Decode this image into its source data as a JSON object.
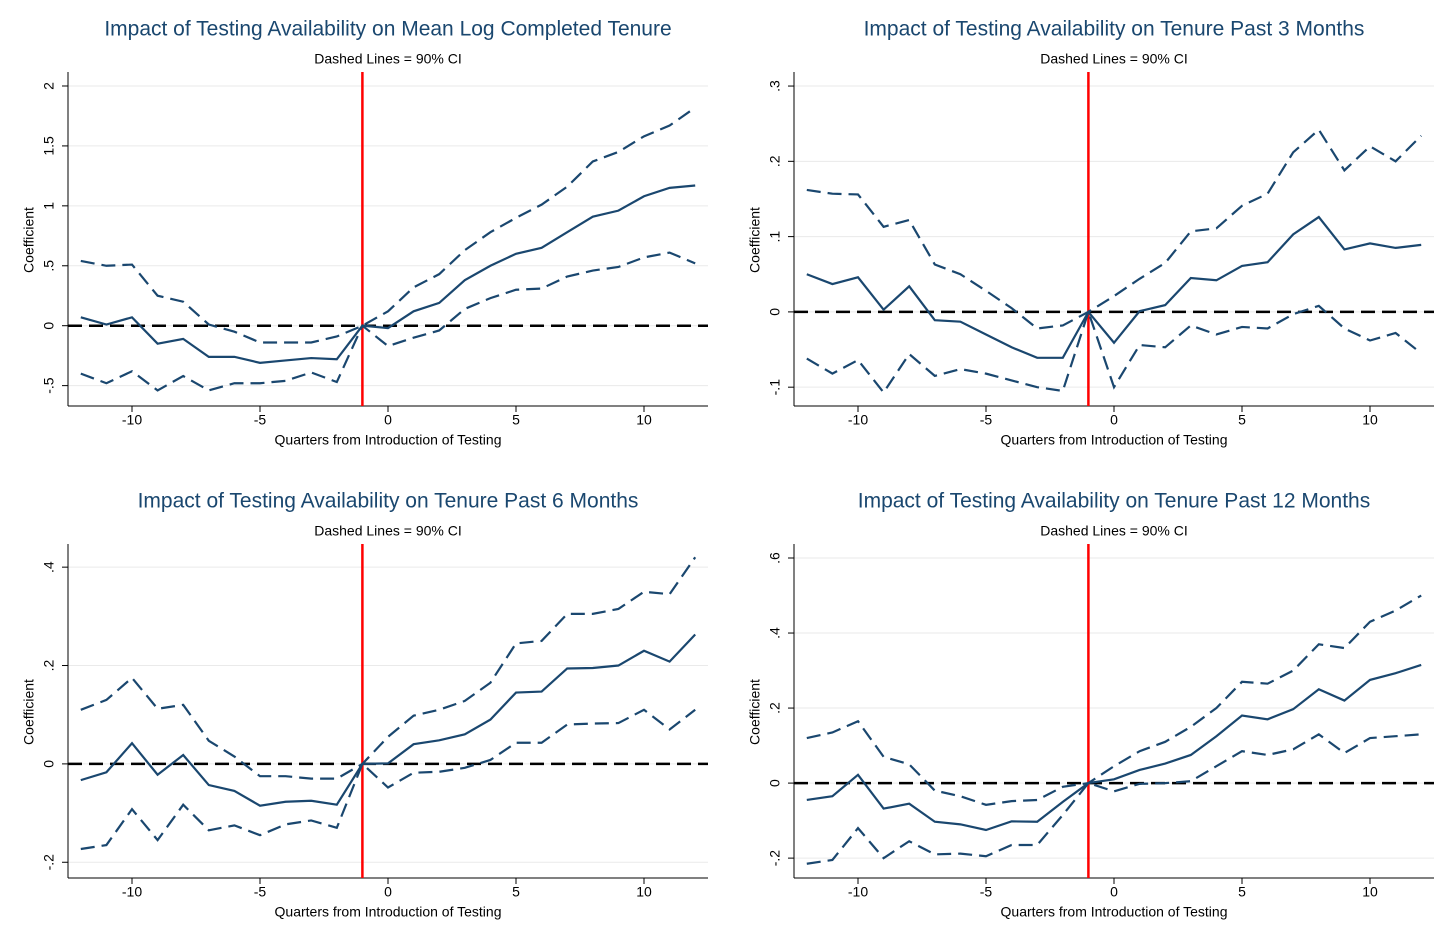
{
  "chart_data": [
    {
      "type": "line",
      "title": "Impact of Testing Availability on Mean Log Completed Tenure",
      "subtitle": "Dashed Lines = 90% CI",
      "xlabel": "Quarters from Introduction of Testing",
      "ylabel": "Coefficient",
      "x": [
        -12,
        -11,
        -10,
        -9,
        -8,
        -7,
        -6,
        -5,
        -4,
        -3,
        -2,
        -1,
        0,
        1,
        2,
        3,
        4,
        5,
        6,
        7,
        8,
        9,
        10,
        11,
        12
      ],
      "series": [
        {
          "color": "#1a476f",
          "line_style": "solid",
          "values": [
            0.07,
            0.01,
            0.07,
            -0.15,
            -0.11,
            -0.26,
            -0.26,
            -0.31,
            -0.29,
            -0.27,
            -0.28,
            0,
            -0.02,
            0.12,
            0.19,
            0.38,
            0.5,
            0.6,
            0.65,
            0.78,
            0.91,
            0.96,
            1.08,
            1.15,
            1.17
          ]
        },
        {
          "color": "#1a476f",
          "line_style": "dashed",
          "values": [
            0.54,
            0.5,
            0.51,
            0.25,
            0.2,
            0.01,
            -0.05,
            -0.14,
            -0.14,
            -0.14,
            -0.09,
            0,
            0.12,
            0.32,
            0.43,
            0.63,
            0.78,
            0.9,
            1.01,
            1.16,
            1.37,
            1.45,
            1.58,
            1.67,
            1.82
          ]
        },
        {
          "color": "#1a476f",
          "line_style": "dashed",
          "values": [
            -0.4,
            -0.48,
            -0.38,
            -0.54,
            -0.42,
            -0.54,
            -0.48,
            -0.48,
            -0.46,
            -0.39,
            -0.47,
            0,
            -0.17,
            -0.1,
            -0.04,
            0.14,
            0.23,
            0.3,
            0.31,
            0.41,
            0.46,
            0.49,
            0.57,
            0.61,
            0.52
          ]
        }
      ],
      "xlim": [
        -12.5,
        12.5
      ],
      "xticks": [
        -10,
        -5,
        0,
        5,
        10
      ],
      "ylim": [
        -0.67,
        2.1
      ],
      "yticks": [
        {
          "value": -0.5,
          "label": "-.5"
        },
        0,
        {
          "value": 0.5,
          "label": ".5"
        },
        1,
        {
          "value": 1.5,
          "label": "1.5"
        },
        2
      ],
      "grid": true,
      "vline": -1,
      "vline_color": "#ff0000",
      "hline": 0,
      "hline_color": "#000000"
    },
    {
      "type": "line",
      "title": "Impact of Testing Availability on Tenure Past 3 Months",
      "subtitle": "Dashed Lines = 90% CI",
      "xlabel": "Quarters from Introduction of Testing",
      "ylabel": "Coefficient",
      "x": [
        -12,
        -11,
        -10,
        -9,
        -8,
        -7,
        -6,
        -5,
        -4,
        -3,
        -2,
        -1,
        0,
        1,
        2,
        3,
        4,
        5,
        6,
        7,
        8,
        9,
        10,
        11,
        12
      ],
      "series": [
        {
          "color": "#1a476f",
          "line_style": "solid",
          "values": [
            0.05,
            0.037,
            0.046,
            0.003,
            0.034,
            -0.011,
            -0.013,
            -0.03,
            -0.047,
            -0.061,
            -0.061,
            0,
            -0.041,
            0.001,
            0.009,
            0.045,
            0.042,
            0.061,
            0.066,
            0.103,
            0.126,
            0.083,
            0.091,
            0.085,
            0.089
          ]
        },
        {
          "color": "#1a476f",
          "line_style": "dashed",
          "values": [
            0.162,
            0.157,
            0.156,
            0.113,
            0.122,
            0.063,
            0.05,
            0.028,
            0.005,
            -0.022,
            -0.018,
            0,
            0.021,
            0.044,
            0.065,
            0.107,
            0.111,
            0.141,
            0.157,
            0.212,
            0.242,
            0.188,
            0.22,
            0.2,
            0.234
          ]
        },
        {
          "color": "#1a476f",
          "line_style": "dashed",
          "values": [
            -0.062,
            -0.082,
            -0.064,
            -0.107,
            -0.056,
            -0.085,
            -0.076,
            -0.082,
            -0.091,
            -0.1,
            -0.105,
            0,
            -0.1,
            -0.044,
            -0.047,
            -0.018,
            -0.03,
            -0.02,
            -0.022,
            -0.003,
            0.008,
            -0.022,
            -0.038,
            -0.028,
            -0.055
          ]
        }
      ],
      "xlim": [
        -12.5,
        12.5
      ],
      "xticks": [
        -10,
        -5,
        0,
        5,
        10
      ],
      "ylim": [
        -0.125,
        0.316
      ],
      "yticks": [
        {
          "value": -0.1,
          "label": "-.1"
        },
        0,
        {
          "value": 0.1,
          "label": ".1"
        },
        {
          "value": 0.2,
          "label": ".2"
        },
        {
          "value": 0.3,
          "label": ".3"
        }
      ],
      "grid": true,
      "vline": -1,
      "vline_color": "#ff0000",
      "hline": 0,
      "hline_color": "#000000"
    },
    {
      "type": "line",
      "title": "Impact of Testing Availability on Tenure Past 6 Months",
      "subtitle": "Dashed Lines = 90% CI",
      "xlabel": "Quarters from Introduction of Testing",
      "ylabel": "Coefficient",
      "x": [
        -12,
        -11,
        -10,
        -9,
        -8,
        -7,
        -6,
        -5,
        -4,
        -3,
        -2,
        -1,
        0,
        1,
        2,
        3,
        4,
        5,
        6,
        7,
        8,
        9,
        10,
        11,
        12
      ],
      "series": [
        {
          "color": "#1a476f",
          "line_style": "solid",
          "values": [
            -0.033,
            -0.017,
            0.042,
            -0.022,
            0.018,
            -0.043,
            -0.055,
            -0.085,
            -0.077,
            -0.075,
            -0.083,
            0,
            0.001,
            0.04,
            0.048,
            0.06,
            0.09,
            0.145,
            0.147,
            0.194,
            0.195,
            0.2,
            0.23,
            0.208,
            0.263
          ]
        },
        {
          "color": "#1a476f",
          "line_style": "dashed",
          "values": [
            0.11,
            0.13,
            0.175,
            0.112,
            0.12,
            0.047,
            0.015,
            -0.025,
            -0.025,
            -0.03,
            -0.03,
            0,
            0.055,
            0.098,
            0.11,
            0.128,
            0.165,
            0.245,
            0.25,
            0.305,
            0.305,
            0.315,
            0.35,
            0.345,
            0.42
          ]
        },
        {
          "color": "#1a476f",
          "line_style": "dashed",
          "values": [
            -0.173,
            -0.165,
            -0.092,
            -0.155,
            -0.083,
            -0.135,
            -0.125,
            -0.145,
            -0.123,
            -0.115,
            -0.13,
            0,
            -0.048,
            -0.018,
            -0.016,
            -0.008,
            0.008,
            0.043,
            0.043,
            0.08,
            0.082,
            0.083,
            0.11,
            0.07,
            0.11
          ]
        }
      ],
      "xlim": [
        -12.5,
        12.5
      ],
      "xticks": [
        -10,
        -5,
        0,
        5,
        10
      ],
      "ylim": [
        -0.232,
        0.443
      ],
      "yticks": [
        {
          "value": -0.2,
          "label": "-.2"
        },
        0,
        {
          "value": 0.2,
          "label": ".2"
        },
        {
          "value": 0.4,
          "label": ".4"
        }
      ],
      "grid": true,
      "vline": -1,
      "vline_color": "#ff0000",
      "hline": 0,
      "hline_color": "#000000"
    },
    {
      "type": "line",
      "title": "Impact of Testing Availability on Tenure Past 12 Months",
      "subtitle": "Dashed Lines = 90% CI",
      "xlabel": "Quarters from Introduction of Testing",
      "ylabel": "Coefficient",
      "x": [
        -12,
        -11,
        -10,
        -9,
        -8,
        -7,
        -6,
        -5,
        -4,
        -3,
        -2,
        -1,
        0,
        1,
        2,
        3,
        4,
        5,
        6,
        7,
        8,
        9,
        10,
        11,
        12
      ],
      "series": [
        {
          "color": "#1a476f",
          "line_style": "solid",
          "values": [
            -0.045,
            -0.035,
            0.022,
            -0.068,
            -0.055,
            -0.103,
            -0.11,
            -0.125,
            -0.102,
            -0.103,
            -0.05,
            0,
            0.01,
            0.035,
            0.052,
            0.075,
            0.125,
            0.18,
            0.17,
            0.197,
            0.25,
            0.22,
            0.275,
            0.293,
            0.315
          ]
        },
        {
          "color": "#1a476f",
          "line_style": "dashed",
          "values": [
            0.12,
            0.135,
            0.165,
            0.07,
            0.05,
            -0.02,
            -0.035,
            -0.058,
            -0.048,
            -0.045,
            -0.01,
            0,
            0.045,
            0.085,
            0.11,
            0.15,
            0.2,
            0.27,
            0.265,
            0.3,
            0.37,
            0.36,
            0.43,
            0.46,
            0.5
          ]
        },
        {
          "color": "#1a476f",
          "line_style": "dashed",
          "values": [
            -0.215,
            -0.205,
            -0.12,
            -0.2,
            -0.155,
            -0.19,
            -0.188,
            -0.195,
            -0.165,
            -0.165,
            -0.085,
            0,
            -0.022,
            -0.002,
            0,
            0.005,
            0.045,
            0.085,
            0.075,
            0.09,
            0.13,
            0.08,
            0.12,
            0.125,
            0.13
          ]
        }
      ],
      "xlim": [
        -12.5,
        12.5
      ],
      "xticks": [
        -10,
        -5,
        0,
        5,
        10
      ],
      "ylim": [
        -0.253,
        0.632
      ],
      "yticks": [
        {
          "value": -0.2,
          "label": "-.2"
        },
        0,
        {
          "value": 0.2,
          "label": ".2"
        },
        {
          "value": 0.4,
          "label": ".4"
        },
        {
          "value": 0.6,
          "label": ".6"
        }
      ],
      "grid": true,
      "vline": -1,
      "vline_color": "#ff0000",
      "hline": 0,
      "hline_color": "#000000"
    }
  ]
}
